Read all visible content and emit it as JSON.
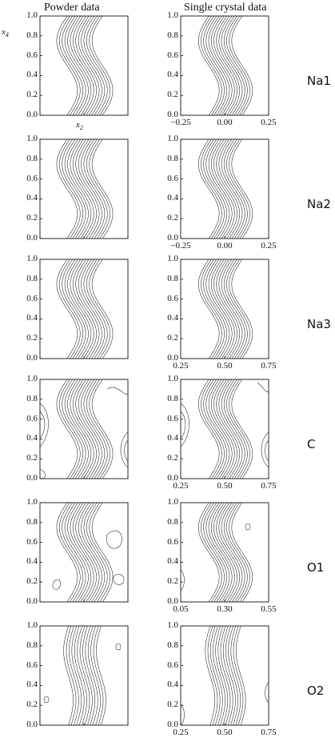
{
  "headers": {
    "powder": "Powder data",
    "single": "Single crystal data"
  },
  "axes": {
    "y_var": "x",
    "y_sub": "4",
    "x_var": "x",
    "x_sub": "2"
  },
  "y_ticks": [
    "1.0",
    "0.8",
    "0.6",
    "0.4",
    "0.2",
    "0.0"
  ],
  "rows": [
    {
      "label": "Na1",
      "x_ticks": [
        "−0.25",
        "0.00",
        "0.25"
      ],
      "extra": "none"
    },
    {
      "label": "Na2",
      "x_ticks": [
        "−0.25",
        "0.00",
        "0.25"
      ],
      "extra": "none"
    },
    {
      "label": "Na3",
      "x_ticks": [
        "0.25",
        "0.50",
        "0.75"
      ],
      "extra": "none"
    },
    {
      "label": "C",
      "x_ticks": [
        "0.25",
        "0.50",
        "0.75"
      ],
      "extra": "c"
    },
    {
      "label": "O1",
      "x_ticks": [
        "0.05",
        "0.30",
        "0.55"
      ],
      "extra": "o1"
    },
    {
      "label": "O2",
      "x_ticks": [
        "0.25",
        "0.50",
        "0.75"
      ],
      "extra": "o2"
    }
  ]
}
